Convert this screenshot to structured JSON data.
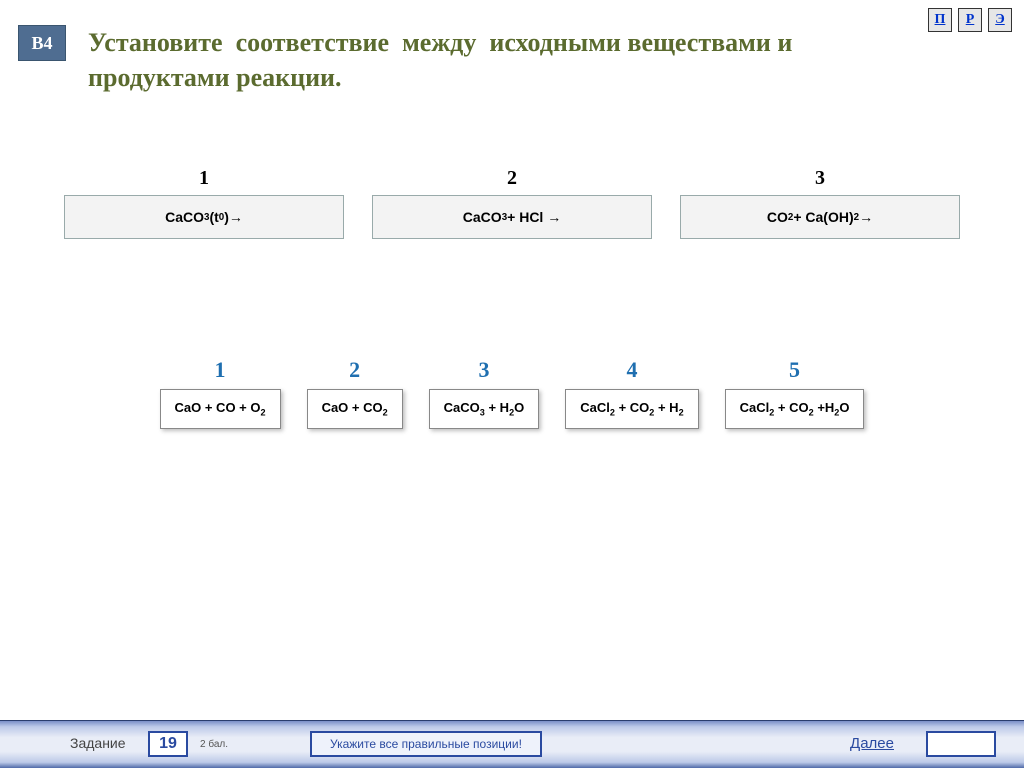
{
  "nav": {
    "p": "П",
    "r": "Р",
    "e": "Э"
  },
  "question": {
    "badge": "В4",
    "title_html": "Установите&nbsp; соответствие&nbsp; между&nbsp; исходными веществами и продуктами реакции."
  },
  "upper": [
    {
      "num": "1",
      "formula_html": "CaCO<sub>3 </sub>(t<sup>0 </sup>)→"
    },
    {
      "num": "2",
      "formula_html": "CaCO<sub>3</sub> + HCl →"
    },
    {
      "num": "3",
      "formula_html": "CO<sub>2</sub> + Ca(OH)<sub>2</sub> →"
    }
  ],
  "lower": [
    {
      "num": "1",
      "formula_html": "CaO + CO + O<sub>2</sub>"
    },
    {
      "num": "2",
      "formula_html": "CaO + CO<sub>2</sub>"
    },
    {
      "num": "3",
      "formula_html": "CaCO<sub>3</sub> + H<sub>2</sub>O"
    },
    {
      "num": "4",
      "formula_html": "CaCl<sub>2</sub> + CO<sub>2</sub> + H<sub>2</sub>"
    },
    {
      "num": "5",
      "formula_html": "CaCl<sub>2</sub> + CO<sub>2</sub> +H<sub>2</sub>O"
    }
  ],
  "footer": {
    "task_label": "Задание",
    "task_number": "19",
    "points_label": "2 бал.",
    "instruction": "Укажите все правильные позиции!",
    "next_label": "Далее"
  },
  "colors": {
    "title_color": "#5b6b2f",
    "badge_bg": "#4f6d91",
    "lower_num_color": "#1f6fb0",
    "footer_accent": "#2a4aa0"
  }
}
